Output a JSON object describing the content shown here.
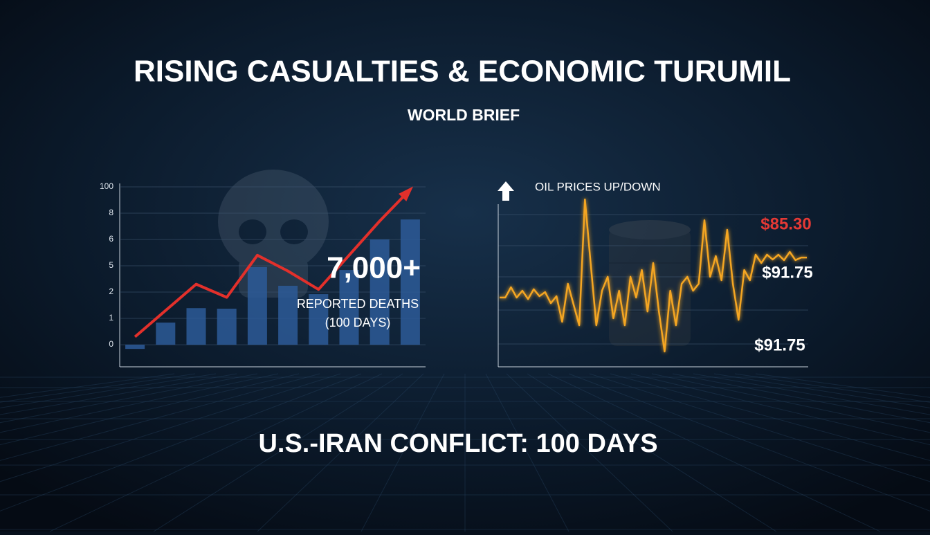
{
  "header": {
    "title": "RISING CASUALTIES & ECONOMIC TURUMIL",
    "subtitle": "WORLD BRIEF"
  },
  "footer": {
    "title": "U.S.-IRAN CONFLICT: 100 DAYS"
  },
  "chart_data": [
    {
      "type": "bar",
      "categories": [
        null,
        null,
        null,
        null,
        null,
        null,
        null,
        null,
        null,
        null
      ],
      "series": [
        {
          "type": "bar",
          "color": "#2d5a98",
          "values": [
            -0.16,
            0.84,
            1.39,
            1.37,
            2.95,
            2.24,
            1.92,
            2.84,
            4.0,
            4.76
          ]
        },
        {
          "type": "line",
          "color": "#e3302b",
          "values": [
            0.3,
            1.3,
            2.3,
            1.8,
            3.4,
            2.8,
            2.1,
            3.4,
            4.7,
            5.9
          ]
        }
      ],
      "ylim": [
        -0.84,
        6.13
      ],
      "yticks": [
        0,
        1,
        2,
        {
          "value": 3,
          "label": "5"
        },
        {
          "value": 4,
          "label": "6"
        },
        {
          "value": 5,
          "label": "8"
        },
        {
          "value": 6,
          "label": "100"
        }
      ],
      "grid": true,
      "annotations": [
        "7,000+",
        "REPORTED DEATHS",
        "(100 DAYS)"
      ]
    },
    {
      "type": "line",
      "title": "OIL PRICES UP/DOWN",
      "color": "#f5a623",
      "ylim": [
        0,
        100
      ],
      "values": [
        41.7,
        41.7,
        47.9,
        41.7,
        45.8,
        40.8,
        46.7,
        42.5,
        45,
        38.3,
        42.5,
        27.1,
        50,
        37.5,
        25,
        100.8,
        62.5,
        25,
        45.8,
        54.2,
        29.2,
        45.8,
        25,
        54.2,
        41.7,
        58.3,
        33.3,
        62.5,
        33.3,
        9.2,
        45.8,
        25,
        50,
        54.2,
        45.8,
        50,
        88.3,
        54.2,
        66.7,
        52.1,
        82.5,
        50,
        28.3,
        58.3,
        52.1,
        67.5,
        62.5,
        67.5,
        64.6,
        67.5,
        64.2,
        69.2,
        64.2,
        65.8,
        65.8
      ],
      "annotations": [
        {
          "text": "$85.30",
          "color": "#e53935"
        },
        {
          "text": "$91.75",
          "color": "#ffffff"
        },
        {
          "text": "$91.75",
          "color": "#ffffff"
        }
      ]
    }
  ]
}
